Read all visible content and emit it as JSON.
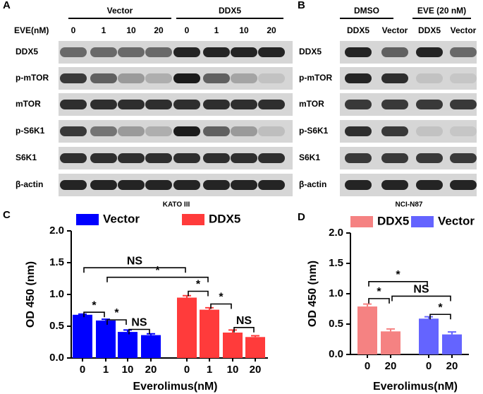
{
  "blots": [
    {
      "label": "A",
      "dose_label": "EVE(nM)",
      "groups": [
        {
          "name": "Vector",
          "lanes": [
            "0",
            "1",
            "10",
            "20"
          ]
        },
        {
          "name": "DDX5",
          "lanes": [
            "0",
            "1",
            "10",
            "20"
          ]
        }
      ],
      "rows": [
        "DDX5",
        "p-mTOR",
        "mTOR",
        "p-S6K1",
        "S6K1",
        "β-actin"
      ],
      "cell_line": "KATO III"
    },
    {
      "label": "B",
      "groups": [
        {
          "name": "DMSO",
          "lanes": [
            "DDX5",
            "Vector"
          ]
        },
        {
          "name": "EVE (20 nM)",
          "lanes": [
            "DDX5",
            "Vector"
          ]
        }
      ],
      "rows": [
        "DDX5",
        "p-mTOR",
        "mTOR",
        "p-S6K1",
        "S6K1",
        "β-actin"
      ],
      "cell_line": "NCI-N87"
    }
  ],
  "chart_data": [
    {
      "type": "bar",
      "label": "C",
      "categories": [
        "0",
        "1",
        "10",
        "20"
      ],
      "series": [
        {
          "name": "Vector",
          "color": "#0000ff",
          "values": [
            0.68,
            0.59,
            0.41,
            0.36
          ],
          "errors": [
            0.01,
            0.02,
            0.03,
            0.02
          ]
        },
        {
          "name": "DDX5",
          "color": "#ff3b3b",
          "values": [
            0.95,
            0.76,
            0.4,
            0.33
          ],
          "errors": [
            0.03,
            0.03,
            0.04,
            0.02
          ]
        }
      ],
      "ylim": [
        0,
        2
      ],
      "yticks": [
        {
          "value": 0,
          "label": "0.0"
        },
        0.5,
        {
          "value": 1,
          "label": "1.0"
        },
        1.5,
        {
          "value": 2,
          "label": "2.0"
        }
      ],
      "ylabel": "OD 450 (nm)",
      "xlabel": "Everolimus(nM)",
      "annotations": [
        "*",
        "*",
        "NS",
        "*",
        "NS",
        "*",
        "*",
        "NS"
      ]
    },
    {
      "type": "bar",
      "label": "D",
      "categories": [
        "0",
        "20"
      ],
      "series": [
        {
          "name": "DDX5",
          "color": "#f58282",
          "values": [
            0.79,
            0.38
          ],
          "errors": [
            0.04,
            0.04
          ]
        },
        {
          "name": "Vector",
          "color": "#6464ff",
          "values": [
            0.59,
            0.33
          ],
          "errors": [
            0.03,
            0.04
          ]
        }
      ],
      "ylim": [
        0,
        2
      ],
      "yticks": [
        {
          "value": 0,
          "label": "0.0"
        },
        0.5,
        {
          "value": 1,
          "label": "1.0"
        },
        1.5,
        {
          "value": 2,
          "label": "2.0"
        }
      ],
      "ylabel": "OD 450 (nm)",
      "xlabel": "Everolimus(nM)",
      "annotations": [
        "*",
        "*",
        "NS",
        "*"
      ]
    }
  ]
}
